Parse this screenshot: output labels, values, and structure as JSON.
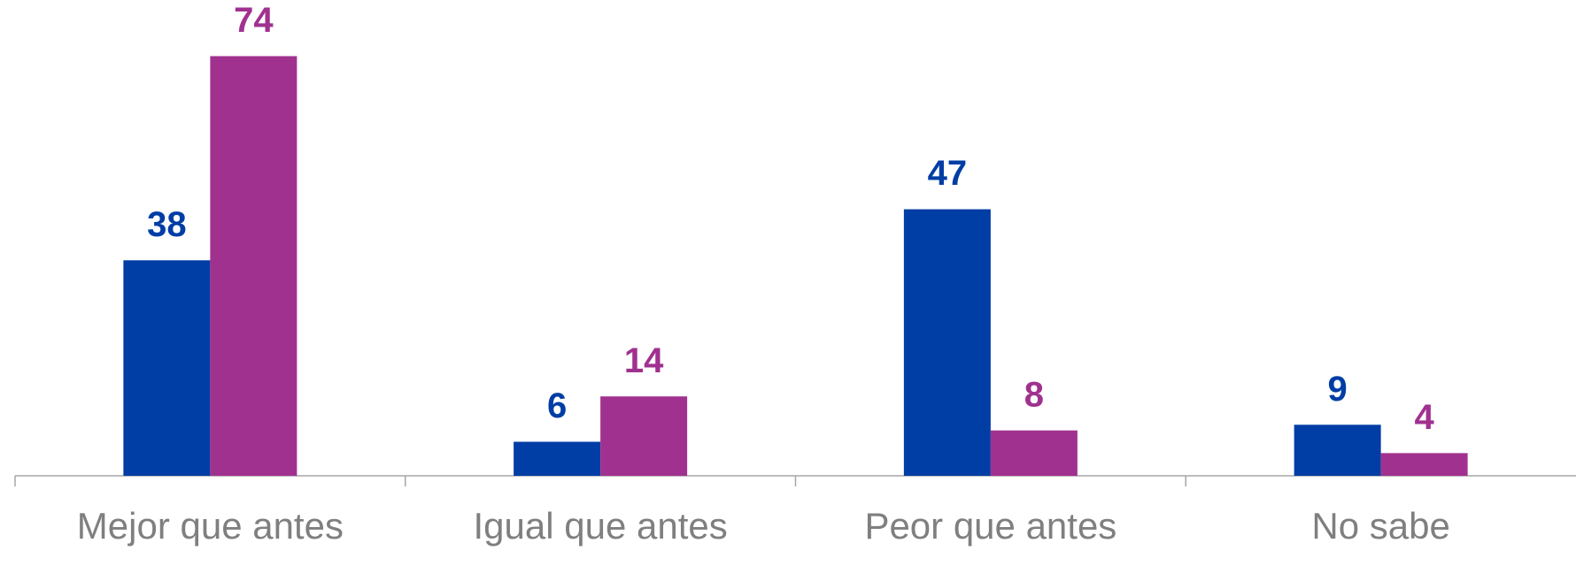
{
  "chart_data": {
    "type": "bar",
    "categories": [
      "Mejor que antes",
      "Igual que antes",
      "Peor que antes",
      "No sabe"
    ],
    "series": [
      {
        "color": "#003da5",
        "values": [
          38,
          6,
          47,
          9
        ]
      },
      {
        "color": "#a0318f",
        "values": [
          74,
          14,
          8,
          4
        ]
      }
    ],
    "ylim": [
      0,
      80
    ]
  }
}
